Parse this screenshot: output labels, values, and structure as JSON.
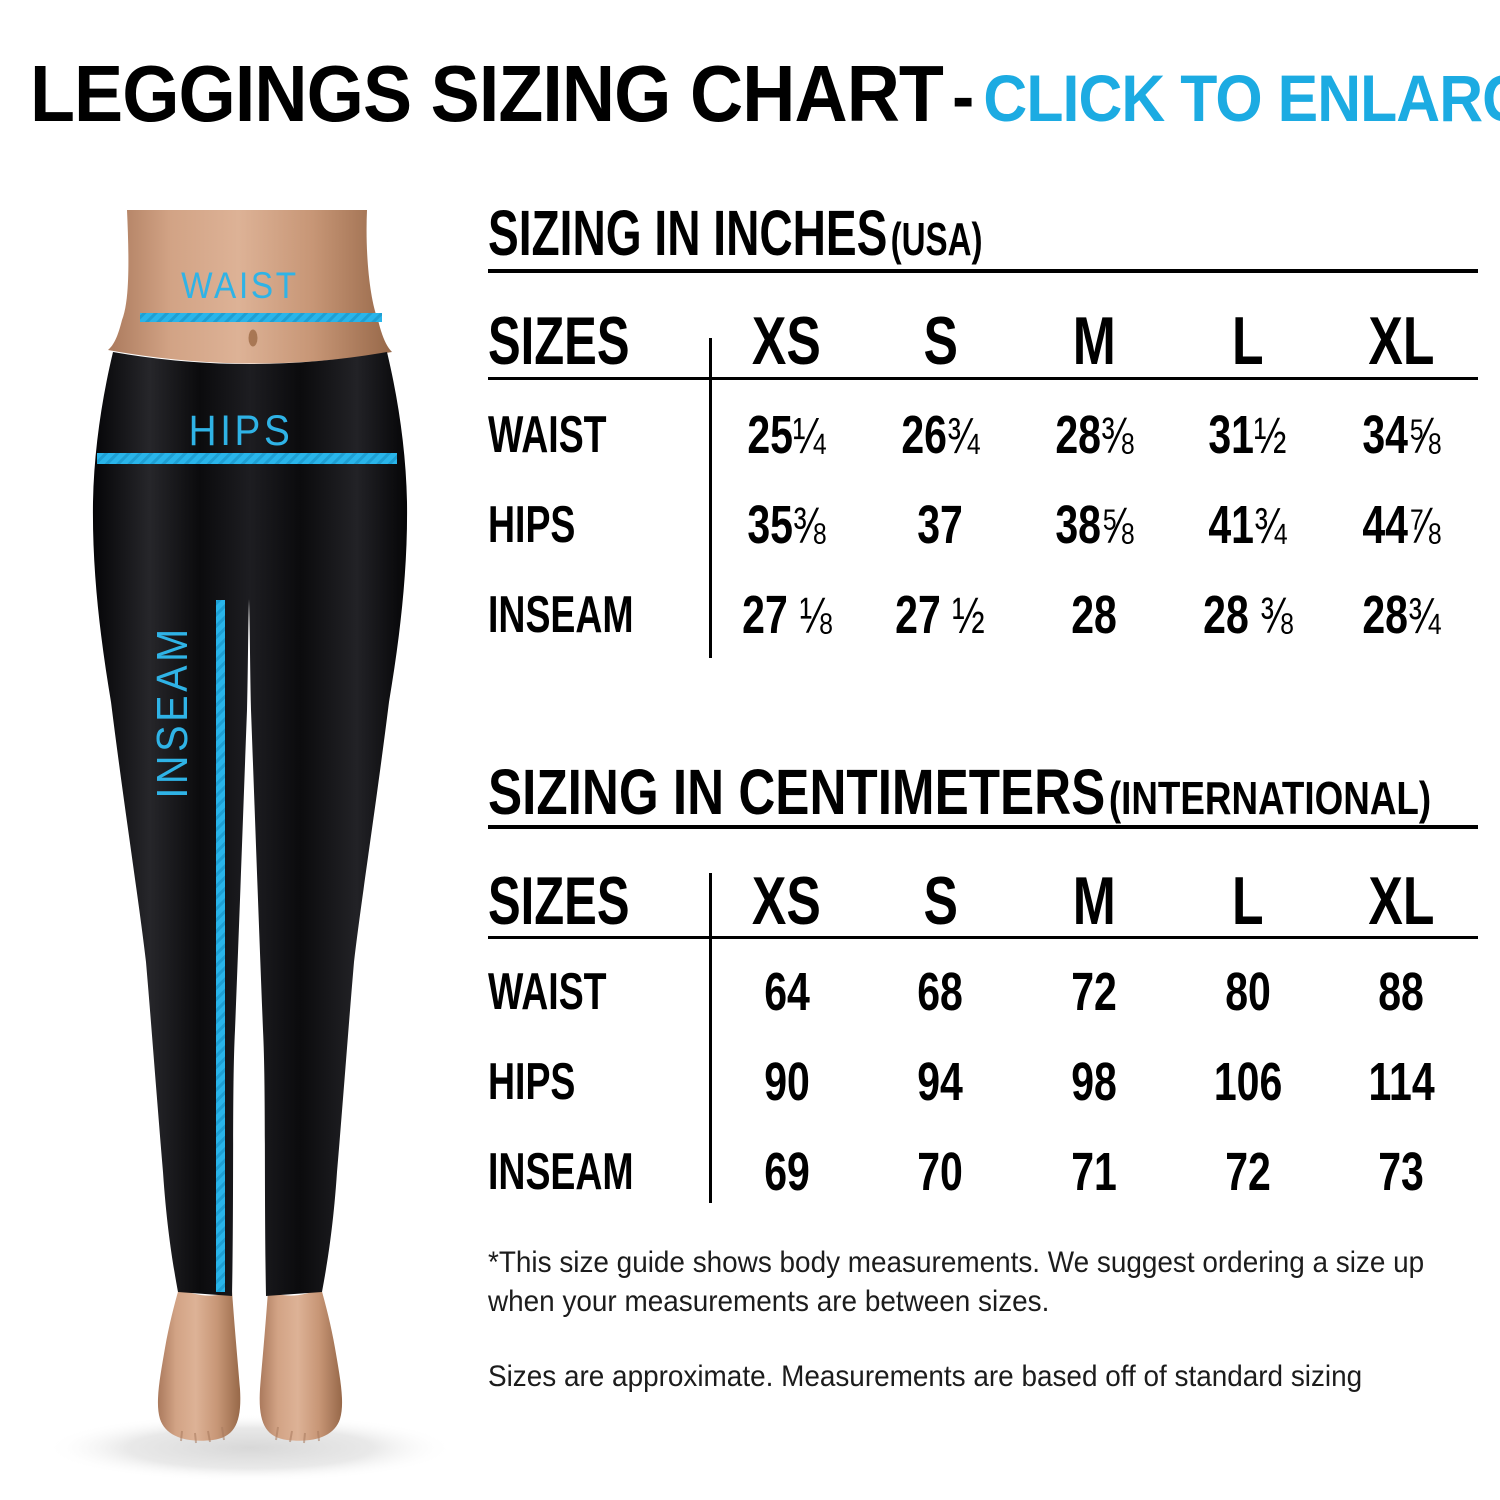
{
  "title": {
    "main": "LEGGINGS SIZING CHART",
    "separator": "-",
    "action": "CLICK TO ENLARGE"
  },
  "colors": {
    "accent_cyan": "#1cabe2",
    "measure_line_cyan": "#29b5ea",
    "ink": "#000000"
  },
  "figure": {
    "waist_label": "WAIST",
    "hips_label": "HIPS",
    "inseam_label": "INSEAM"
  },
  "tables": [
    {
      "heading": "SIZING IN INCHES",
      "heading_suffix": "(USA)",
      "header": {
        "label": "SIZES",
        "columns": [
          "XS",
          "S",
          "M",
          "L",
          "XL"
        ]
      },
      "rows": [
        {
          "label": "WAIST",
          "values": [
            "25¼",
            "26¾",
            "28⅜",
            "31½",
            "34⅝"
          ]
        },
        {
          "label": "HIPS",
          "values": [
            "35⅜",
            "37",
            "38⅝",
            "41¾",
            "44⅞"
          ]
        },
        {
          "label": "INSEAM",
          "values": [
            "27 ⅛",
            "27 ½",
            "28",
            "28 ⅜",
            "28¾"
          ]
        }
      ]
    },
    {
      "heading": "SIZING IN CENTIMETERS",
      "heading_suffix": "(INTERNATIONAL)",
      "header": {
        "label": "SIZES",
        "columns": [
          "XS",
          "S",
          "M",
          "L",
          "XL"
        ]
      },
      "rows": [
        {
          "label": "WAIST",
          "values": [
            "64",
            "68",
            "72",
            "80",
            "88"
          ]
        },
        {
          "label": "HIPS",
          "values": [
            "90",
            "94",
            "98",
            "106",
            "114"
          ]
        },
        {
          "label": "INSEAM",
          "values": [
            "69",
            "70",
            "71",
            "72",
            "73"
          ]
        }
      ]
    }
  ],
  "notes": {
    "primary": "*This size guide shows body measurements. We suggest ordering a size up when your measurements are between sizes.",
    "secondary": "Sizes are approximate. Measurements are based off of standard sizing"
  }
}
